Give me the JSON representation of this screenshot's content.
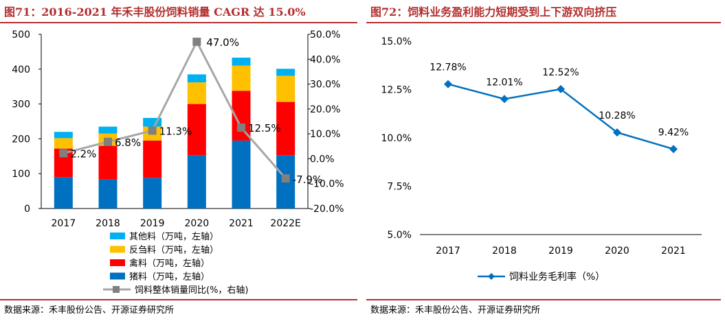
{
  "left_panel": {
    "title": "图71：2016-2021 年禾丰股份饲料销量 CAGR 达 15.0%",
    "source": "数据来源：禾丰股份公告、开源证券研究所"
  },
  "right_panel": {
    "title": "图72：饲料业务盈利能力短期受到上下游双向挤压",
    "source": "数据来源：禾丰股份公告、开源证券研究所"
  },
  "chart_data": [
    {
      "type": "bar",
      "stacked": true,
      "categories": [
        "2017",
        "2018",
        "2019",
        "2020",
        "2021",
        "2022E"
      ],
      "y_left": {
        "min": 0,
        "max": 500,
        "ticks": [
          "0",
          "100",
          "200",
          "300",
          "400",
          "500"
        ]
      },
      "y_right": {
        "min": -20,
        "max": 50,
        "ticks": [
          "-20.0%",
          "-10.0%",
          "0.0%",
          "10.0%",
          "20.0%",
          "30.0%",
          "40.0%",
          "50.0%"
        ]
      },
      "series": [
        {
          "name": "猪料（万吨，左轴）",
          "color": "#0070c0",
          "values": [
            90,
            83,
            88,
            153,
            195,
            153
          ]
        },
        {
          "name": "禽料（万吨，左轴）",
          "color": "#ff0000",
          "values": [
            82,
            97,
            107,
            147,
            143,
            153
          ]
        },
        {
          "name": "反刍料（万吨，左轴）",
          "color": "#ffc000",
          "values": [
            30,
            35,
            40,
            62,
            72,
            75
          ]
        },
        {
          "name": "其他料（万吨，左轴）",
          "color": "#00b0f0",
          "values": [
            18,
            20,
            25,
            23,
            23,
            20
          ]
        }
      ],
      "line_series": {
        "name": "饲料整体销量同比(%，右轴)",
        "color": "#a6a6a6",
        "marker_color": "#808080",
        "values": [
          2.2,
          6.8,
          11.3,
          47.0,
          12.5,
          -7.9
        ],
        "labels": [
          "2.2%",
          "6.8%",
          "11.3%",
          "47.0%",
          "12.5%",
          "-7.9%"
        ]
      },
      "legend_order": [
        "其他料（万吨，左轴）",
        "反刍料（万吨，左轴）",
        "禽料（万吨，左轴）",
        "猪料（万吨，左轴）",
        "饲料整体销量同比(%，右轴)"
      ],
      "legend_position": "bottom"
    },
    {
      "type": "line",
      "categories": [
        "2017",
        "2018",
        "2019",
        "2020",
        "2021"
      ],
      "y": {
        "min": 5.0,
        "max": 15.0,
        "ticks": [
          "5.0%",
          "7.5%",
          "10.0%",
          "12.5%",
          "15.0%"
        ]
      },
      "series": [
        {
          "name": "饲料业务毛利率（%）",
          "color": "#0070c0",
          "values": [
            12.78,
            12.01,
            12.52,
            10.28,
            9.42
          ],
          "labels": [
            "12.78%",
            "12.01%",
            "12.52%",
            "10.28%",
            "9.42%"
          ]
        }
      ],
      "legend_position": "bottom"
    }
  ]
}
